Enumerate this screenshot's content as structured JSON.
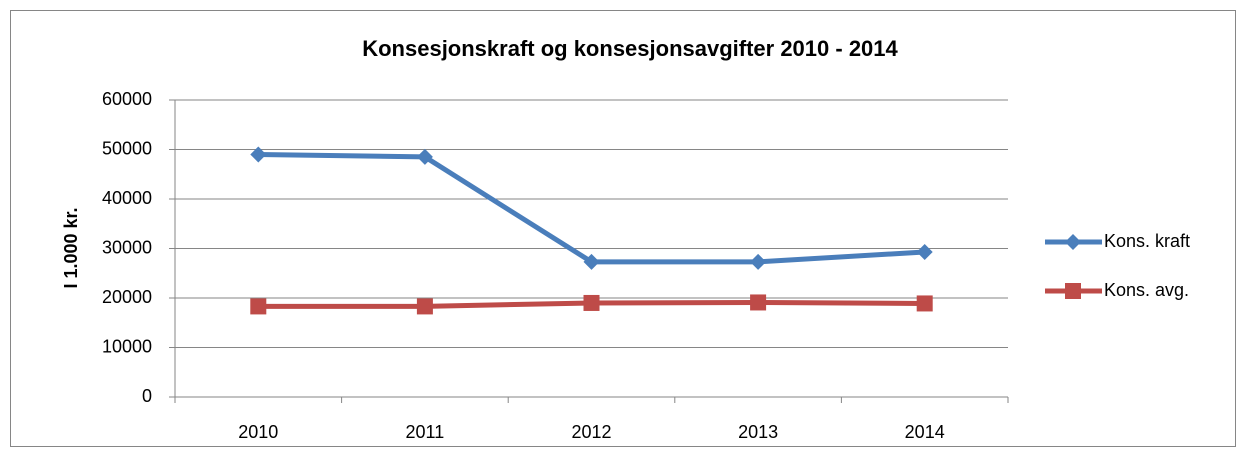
{
  "chart_data": {
    "type": "line",
    "title": "Konsesjonskraft og konsesjonsavgifter 2010 - 2014",
    "ylabel": "I 1.000 kr.",
    "categories": [
      "2010",
      "2011",
      "2012",
      "2013",
      "2014"
    ],
    "series": [
      {
        "name": "Kons. kraft",
        "color": "#4a7ebb",
        "marker": "diamond",
        "values": [
          49000,
          48500,
          27300,
          27300,
          29300
        ]
      },
      {
        "name": "Kons. avg.",
        "color": "#be4b48",
        "marker": "square",
        "values": [
          18300,
          18300,
          19000,
          19100,
          18900
        ]
      }
    ],
    "ylim": [
      0,
      60000
    ],
    "yticks": [
      0,
      10000,
      20000,
      30000,
      40000,
      50000,
      60000
    ],
    "grid": true,
    "legend": "right"
  }
}
